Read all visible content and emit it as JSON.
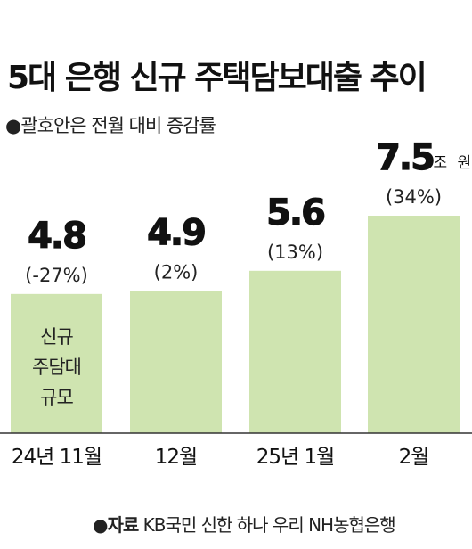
{
  "title": "5대 은행 신규 주택담보대출 추이",
  "subtitle": "●괄호안은 전월 대비 증감률",
  "source": {
    "label": "●자료",
    "text": "KB국민 신한 하나 우리 NH농협은행"
  },
  "chart_data": {
    "type": "bar",
    "categories": [
      "24년 11월",
      "12월",
      "25년 1월",
      "2월"
    ],
    "values": [
      4.8,
      4.9,
      5.6,
      7.5
    ],
    "value_labels": [
      "4.8",
      "4.9",
      "5.6",
      "7.5"
    ],
    "change_labels": [
      "(-27%)",
      "(2%)",
      "(13%)",
      "(34%)"
    ],
    "unit": "조 원",
    "bar_annotation": [
      "신규",
      "주담대",
      "규모"
    ],
    "ylim": [
      0,
      7.5
    ],
    "grid": false,
    "colors": {
      "bar": "#cfe4b0",
      "baseline": "#333333",
      "text": "#111111"
    }
  }
}
